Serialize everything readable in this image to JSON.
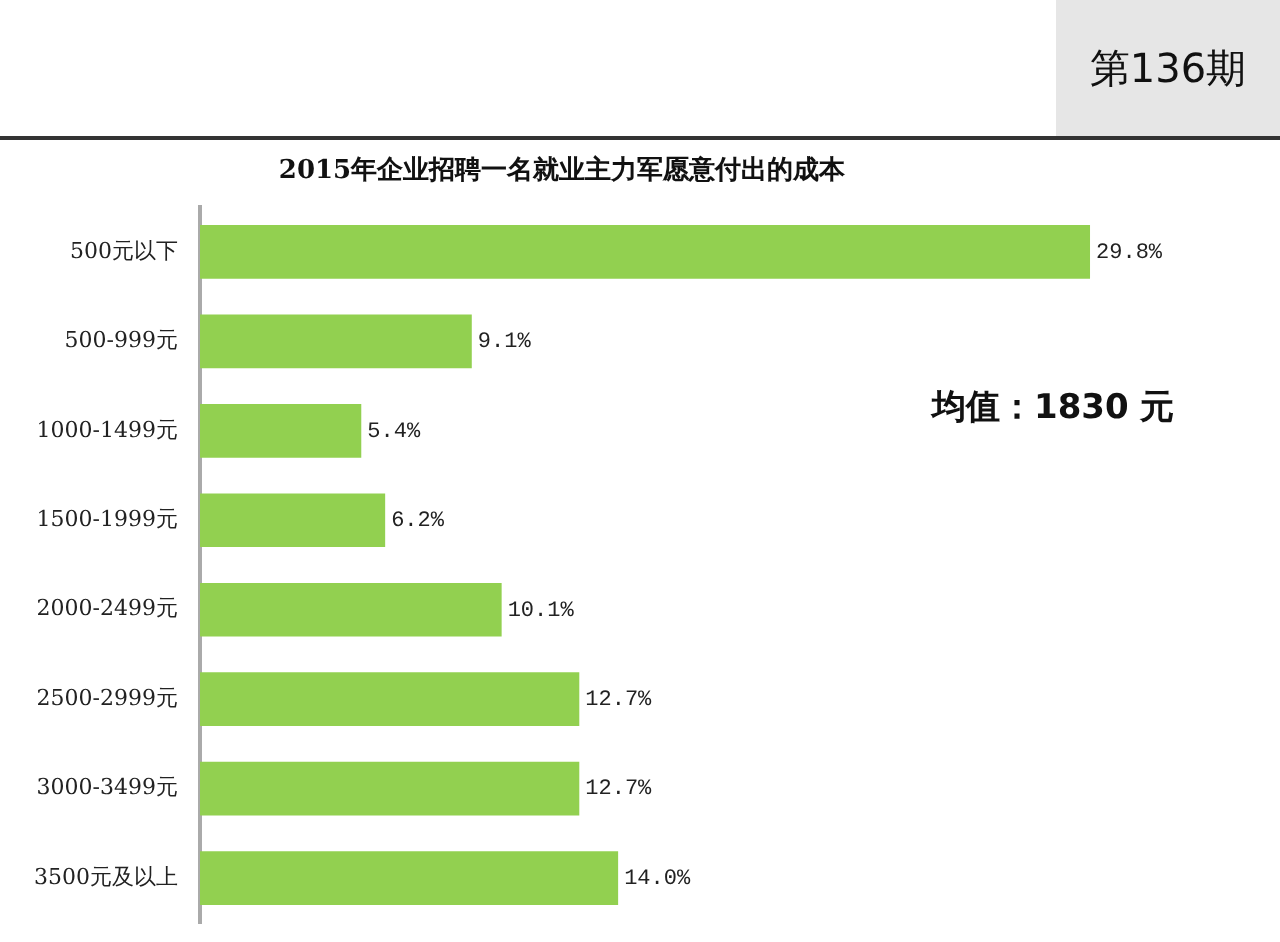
{
  "chart_data": {
    "type": "bar",
    "orientation": "horizontal",
    "title": "2015年企业招聘一名就业主力军愿意付出的成本",
    "categories": [
      "500元以下",
      "500-999元",
      "1000-1499元",
      "1500-1999元",
      "2000-2499元",
      "2500-2999元",
      "3000-3499元",
      "3500元及以上"
    ],
    "values": [
      29.8,
      9.1,
      5.4,
      6.2,
      10.1,
      12.7,
      12.7,
      14.0
    ],
    "value_labels": [
      "29.8%",
      "9.1%",
      "5.4%",
      "6.2%",
      "10.1%",
      "12.7%",
      "12.7%",
      "14.0%"
    ],
    "color": "#92d050",
    "tick_labels": "y",
    "legend": false,
    "annotations": [
      "第136期",
      "均值：1830 元"
    ]
  }
}
